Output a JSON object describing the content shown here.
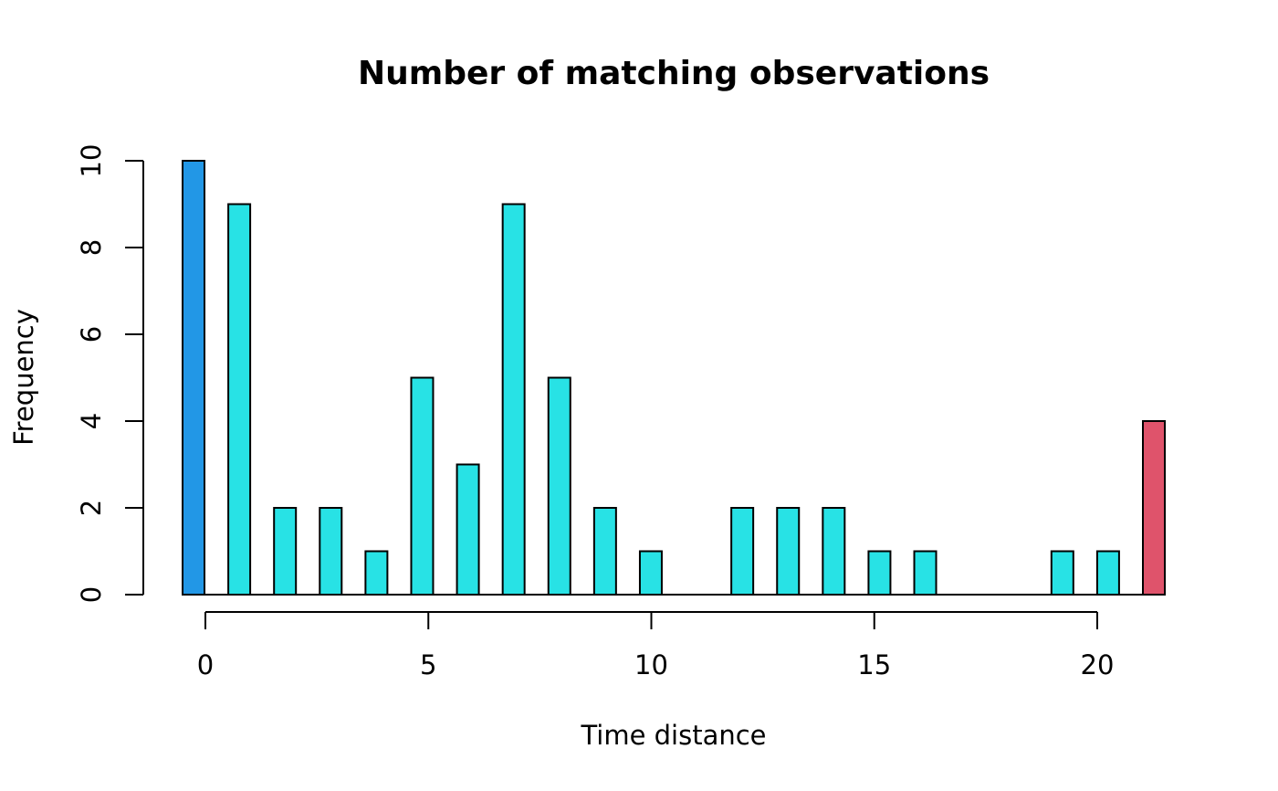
{
  "chart_data": {
    "type": "bar",
    "title": "Number of matching observations",
    "xlabel": "Time distance",
    "ylabel": "Frequency",
    "x": [
      0,
      1,
      2,
      3,
      4,
      5,
      6,
      7,
      8,
      9,
      10,
      11,
      12,
      13,
      14,
      15,
      16,
      17,
      18,
      19,
      20,
      21
    ],
    "values": [
      10,
      9,
      2,
      2,
      1,
      5,
      3,
      9,
      5,
      2,
      1,
      0,
      2,
      2,
      2,
      1,
      1,
      0,
      0,
      1,
      1,
      4
    ],
    "bar_colors": [
      "#2297E6",
      "#28E2E5",
      "#28E2E5",
      "#28E2E5",
      "#28E2E5",
      "#28E2E5",
      "#28E2E5",
      "#28E2E5",
      "#28E2E5",
      "#28E2E5",
      "#28E2E5",
      "#28E2E5",
      "#28E2E5",
      "#28E2E5",
      "#28E2E5",
      "#28E2E5",
      "#28E2E5",
      "#28E2E5",
      "#28E2E5",
      "#28E2E5",
      "#28E2E5",
      "#DF536B"
    ],
    "xticks": [
      0,
      5,
      10,
      15,
      20
    ],
    "xtick_labels": [
      "0",
      "5",
      "10",
      "15",
      "20"
    ],
    "xlim": [
      0,
      20
    ],
    "yticks": [
      0,
      2,
      4,
      6,
      8,
      10
    ],
    "ytick_labels": [
      "0",
      "2",
      "4",
      "6",
      "8",
      "10"
    ],
    "ylim": [
      0,
      10
    ],
    "grid": false,
    "legend": "none"
  }
}
